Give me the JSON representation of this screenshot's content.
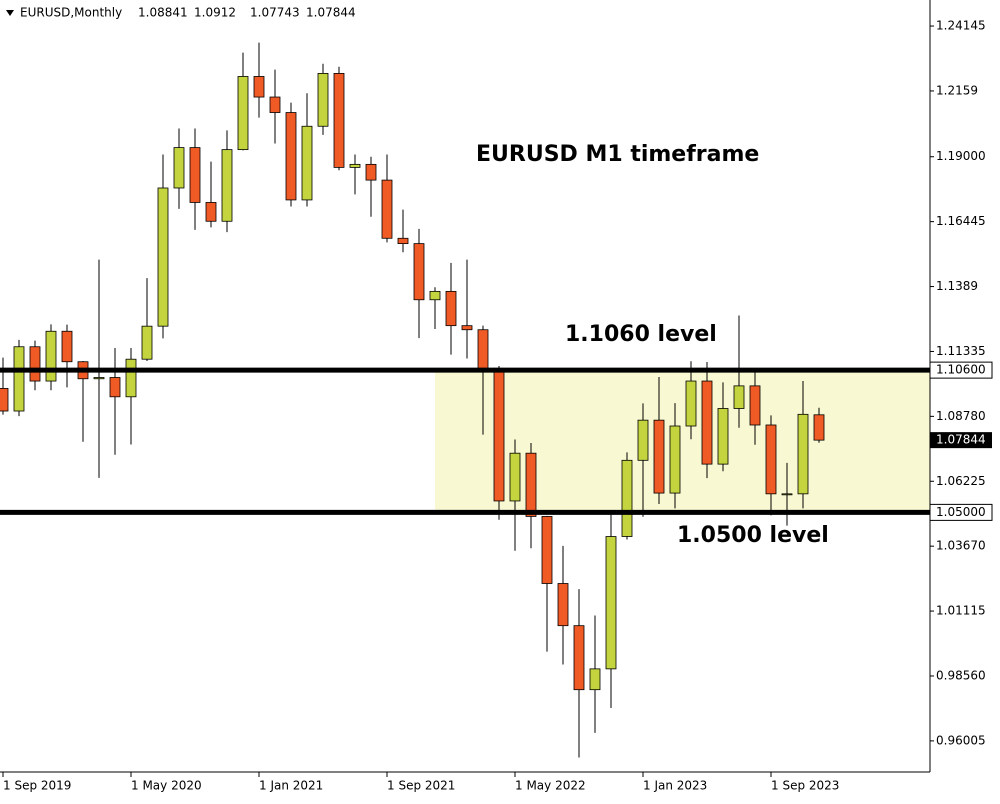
{
  "chart_data": {
    "type": "candlestick",
    "title": "EURUSD,Monthly",
    "categories": [
      "1 Sep 2019",
      null,
      null,
      null,
      null,
      null,
      null,
      null,
      "1 May 2020",
      null,
      null,
      null,
      null,
      null,
      null,
      null,
      "1 Jan 2021",
      null,
      null,
      null,
      null,
      null,
      null,
      null,
      "1 Sep 2021",
      null,
      null,
      null,
      null,
      null,
      null,
      null,
      "1 May 2022",
      null,
      null,
      null,
      null,
      null,
      null,
      null,
      "1 Jan 2023",
      null,
      null,
      null,
      null,
      null,
      null,
      null,
      "1 Sep 2023",
      null,
      null,
      null
    ],
    "series": [
      {
        "name": "open",
        "values": [
          1.0988,
          1.0899,
          1.1152,
          1.1017,
          1.1213,
          1.1093,
          1.1026,
          1.1031,
          1.0955,
          1.1103,
          1.1233,
          1.1777,
          1.1936,
          1.172,
          1.1646,
          1.1928,
          1.2216,
          1.2135,
          1.2074,
          1.173,
          1.202,
          1.2228,
          1.1858,
          1.187,
          1.1808,
          1.1579,
          1.1558,
          1.1337,
          1.137,
          1.1235,
          1.1219,
          1.1067,
          1.0545,
          1.0733,
          1.0484,
          1.022,
          1.0054,
          0.9802,
          0.9884,
          1.0405,
          1.0705,
          1.0863,
          1.0576,
          1.084,
          1.1017,
          1.069,
          1.0909,
          1.0998,
          1.0844,
          1.0573,
          1.0573,
          1.08841
        ]
      },
      {
        "name": "high",
        "values": [
          1.1109,
          1.1179,
          1.1176,
          1.124,
          1.1239,
          1.1096,
          1.1495,
          1.1147,
          1.1147,
          1.1422,
          1.1909,
          1.2011,
          1.2011,
          1.1881,
          1.2004,
          1.231,
          1.2349,
          1.2243,
          1.2113,
          1.215,
          1.2266,
          1.2254,
          1.1909,
          1.19,
          1.1909,
          1.1692,
          1.1616,
          1.1386,
          1.1482,
          1.1495,
          1.1235,
          1.1076,
          1.0787,
          1.0773,
          1.0486,
          1.0368,
          1.0198,
          1.0094,
          1.0497,
          1.0736,
          1.0929,
          1.1033,
          1.093,
          1.1095,
          1.1092,
          1.1012,
          1.1275,
          1.1065,
          1.0882,
          1.0695,
          1.1017,
          1.0912
        ]
      },
      {
        "name": "low",
        "values": [
          1.0885,
          1.0879,
          1.0981,
          1.0981,
          1.0992,
          1.0778,
          1.0636,
          1.0727,
          1.0767,
          1.1096,
          1.1185,
          1.1695,
          1.1612,
          1.1622,
          1.1603,
          1.1925,
          1.2054,
          1.1952,
          1.1704,
          1.1704,
          1.1986,
          1.1847,
          1.1752,
          1.1664,
          1.1563,
          1.1524,
          1.1186,
          1.1222,
          1.1121,
          1.1106,
          1.0806,
          1.0471,
          1.0349,
          1.0359,
          0.9952,
          0.9901,
          0.9535,
          0.9632,
          0.973,
          1.0393,
          1.0483,
          1.0533,
          1.0516,
          1.0788,
          1.0635,
          1.0662,
          1.0833,
          1.0766,
          1.0488,
          1.0448,
          1.0516,
          1.07743
        ]
      },
      {
        "name": "close",
        "values": [
          1.0899,
          1.1152,
          1.1017,
          1.1213,
          1.1093,
          1.1026,
          1.1031,
          1.0955,
          1.1103,
          1.1233,
          1.1777,
          1.1936,
          1.172,
          1.1646,
          1.1928,
          1.2216,
          1.2135,
          1.2074,
          1.173,
          1.202,
          1.2228,
          1.1858,
          1.187,
          1.1808,
          1.1579,
          1.1558,
          1.1337,
          1.137,
          1.1235,
          1.1219,
          1.1067,
          1.0545,
          1.0733,
          1.0484,
          1.022,
          1.0054,
          0.9802,
          0.9884,
          1.0405,
          1.0705,
          1.0863,
          1.0576,
          1.084,
          1.1017,
          1.069,
          1.0909,
          1.0998,
          1.0844,
          1.0573,
          1.0573,
          1.0886,
          1.07844
        ]
      }
    ],
    "up_color": "#c3d43f",
    "down_color": "#f05a24",
    "ylim": [
      0.9478,
      1.2517
    ],
    "yticks": [
      1.24145,
      1.2159,
      {
        "value": 1.19,
        "label": "1.19000"
      },
      1.16445,
      1.1389,
      1.11335,
      {
        "value": 1.0878,
        "label": "1.08780"
      },
      1.06225,
      {
        "value": 1.0367,
        "label": "1.03670"
      },
      1.01115,
      {
        "value": 0.9856,
        "label": "0.98560"
      },
      0.96005
    ],
    "levels": [
      {
        "value": 1.106,
        "label": "1.10600"
      },
      {
        "value": 1.05,
        "label": "1.05000"
      }
    ],
    "zone_color": "#f8f8d2",
    "annotations": [
      "EURUSD M1 timeframe",
      "1.1060 level",
      "1.0500 level"
    ]
  }
}
